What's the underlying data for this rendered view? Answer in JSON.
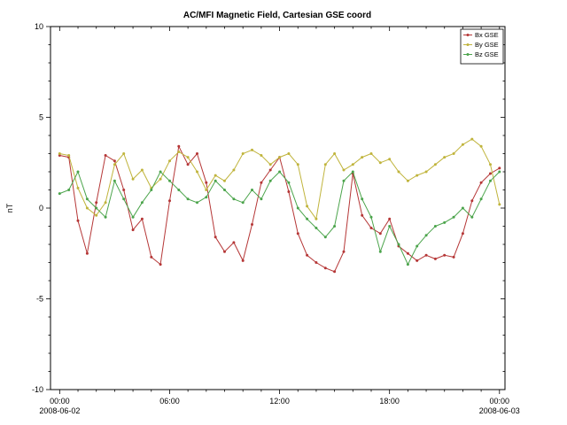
{
  "chart_data": {
    "type": "line",
    "title": "AC/MFI  Magnetic Field, Cartesian GSE coord",
    "xlabel": "",
    "ylabel": "nT",
    "ylim": [
      -10,
      10
    ],
    "xlim_hours": [
      -0.5,
      24.3
    ],
    "y_ticks": [
      -10,
      -5,
      0,
      5,
      10
    ],
    "y_minor_step": 1,
    "x_tick_hours": [
      0,
      6,
      12,
      18,
      24
    ],
    "x_tick_labels": [
      "00:00",
      "06:00",
      "12:00",
      "18:00",
      "00:00"
    ],
    "x_minor_step_hours": 1,
    "x_date_labels": [
      {
        "hour": 0,
        "label": "2008-06-02"
      },
      {
        "hour": 24,
        "label": "2008-06-03"
      }
    ],
    "grid": false,
    "legend_position": "top-right",
    "x_hours": [
      0,
      0.5,
      1,
      1.5,
      2,
      2.5,
      3,
      3.5,
      4,
      4.5,
      5,
      5.5,
      6,
      6.5,
      7,
      7.5,
      8,
      8.5,
      9,
      9.5,
      10,
      10.5,
      11,
      11.5,
      12,
      12.5,
      13,
      13.5,
      14,
      14.5,
      15,
      15.5,
      16,
      16.5,
      17,
      17.5,
      18,
      18.5,
      19,
      19.5,
      20,
      20.5,
      21,
      21.5,
      22,
      22.5,
      23,
      23.5,
      24
    ],
    "series": [
      {
        "name": "Bx GSE",
        "color": "#b53636",
        "values": [
          2.9,
          2.8,
          -0.7,
          -2.5,
          0.3,
          2.9,
          2.6,
          1.0,
          -1.2,
          -0.6,
          -2.7,
          -3.1,
          0.4,
          3.4,
          2.4,
          3.0,
          1.4,
          -1.6,
          -2.4,
          -1.9,
          -2.9,
          -0.9,
          1.4,
          2.1,
          2.8,
          0.9,
          -1.4,
          -2.6,
          -3.0,
          -3.3,
          -3.5,
          -2.4,
          1.9,
          -0.4,
          -1.1,
          -1.4,
          -0.6,
          -2.1,
          -2.5,
          -2.9,
          -2.6,
          -2.8,
          -2.6,
          -2.7,
          -1.4,
          0.4,
          1.4,
          1.9,
          2.2
        ]
      },
      {
        "name": "By GSE",
        "color": "#c0b43c",
        "values": [
          3.0,
          2.9,
          1.1,
          0.0,
          -0.4,
          0.3,
          2.4,
          3.0,
          1.6,
          2.1,
          1.1,
          1.6,
          2.6,
          3.1,
          2.8,
          2.0,
          1.0,
          1.8,
          1.5,
          2.1,
          3.0,
          3.2,
          2.9,
          2.4,
          2.8,
          3.0,
          2.4,
          0.1,
          -0.6,
          2.4,
          3.0,
          2.1,
          2.4,
          2.8,
          3.0,
          2.5,
          2.7,
          2.0,
          1.5,
          1.8,
          2.0,
          2.4,
          2.8,
          3.0,
          3.5,
          3.8,
          3.4,
          2.4,
          0.2
        ]
      },
      {
        "name": "Bz GSE",
        "color": "#4ba44b",
        "values": [
          0.8,
          1.0,
          2.0,
          0.5,
          0.0,
          -0.5,
          1.5,
          0.5,
          -0.5,
          0.3,
          1.0,
          2.0,
          1.5,
          1.0,
          0.5,
          0.3,
          0.6,
          1.5,
          1.0,
          0.5,
          0.3,
          1.0,
          0.5,
          1.5,
          2.0,
          1.4,
          0.0,
          -0.6,
          -1.1,
          -1.6,
          -1.0,
          1.5,
          2.0,
          0.5,
          -0.5,
          -2.4,
          -1.0,
          -2.0,
          -3.1,
          -2.1,
          -1.5,
          -1.0,
          -0.8,
          -0.5,
          0.0,
          -0.5,
          0.5,
          1.5,
          2.0
        ]
      }
    ],
    "frame_color": "#000000",
    "background_color": "#ffffff"
  }
}
